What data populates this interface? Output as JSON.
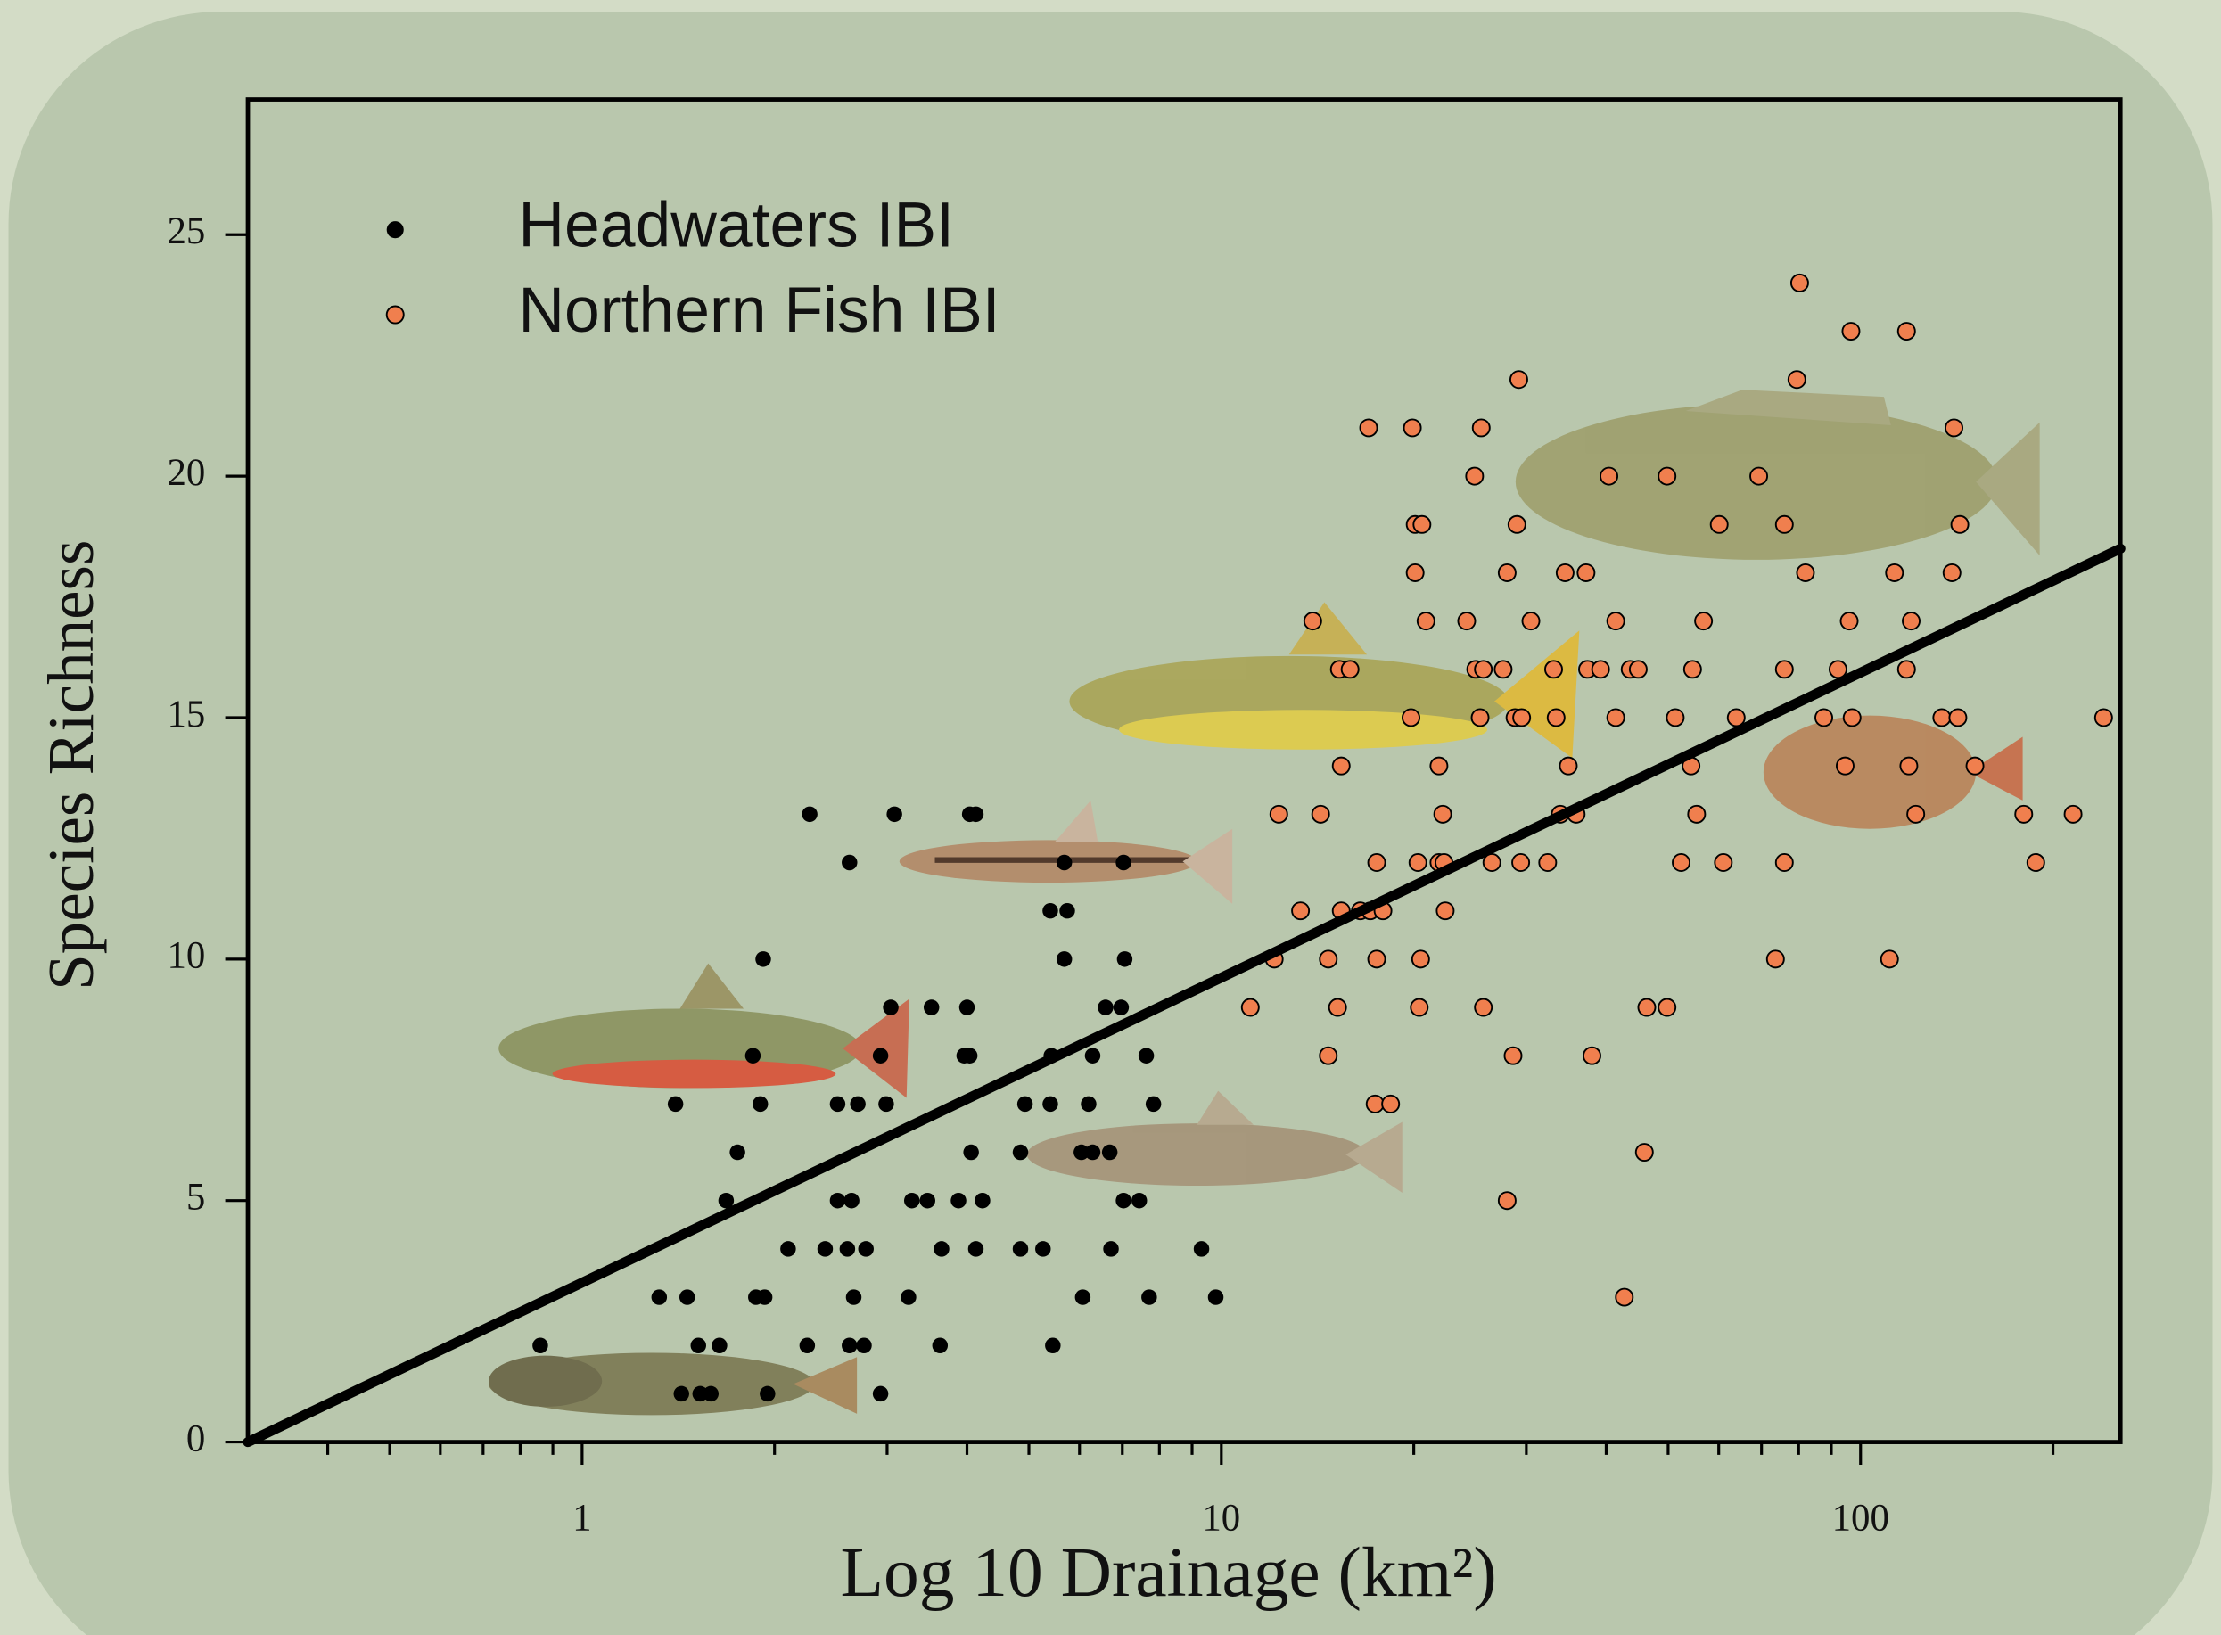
{
  "chart_data": {
    "type": "scatter",
    "x_label": "Log 10 Drainage (km²)",
    "y_label": "Species Richness",
    "xscale": "log",
    "xlim": [
      0.3,
      255
    ],
    "ylim": [
      0,
      27.8
    ],
    "xticks": [
      1,
      10,
      100
    ],
    "xminorticks": [
      0.4,
      0.5,
      0.6,
      0.7,
      0.8,
      0.9,
      2,
      3,
      4,
      5,
      6,
      7,
      8,
      9,
      20,
      30,
      40,
      50,
      60,
      70,
      80,
      90,
      200
    ],
    "yticks": [
      0,
      5,
      10,
      15,
      20,
      25
    ],
    "legend_position": "upper left",
    "series": [
      {
        "name": "Headwaters IBI",
        "color": "#000000",
        "x": [
          2.27,
          3.08,
          4.04,
          4.13,
          2.62,
          5.68,
          7.03,
          5.4,
          5.74,
          1.92,
          5.68,
          7.06,
          3.04,
          3.52,
          4.0,
          6.59,
          6.97,
          1.85,
          2.93,
          3.96,
          4.04,
          5.42,
          6.29,
          7.63,
          1.4,
          1.9,
          2.51,
          2.7,
          2.99,
          4.93,
          5.4,
          6.2,
          7.83,
          1.75,
          4.06,
          4.85,
          6.04,
          6.29,
          6.69,
          1.68,
          2.51,
          2.64,
          3.28,
          3.47,
          3.88,
          4.23,
          7.03,
          7.44,
          2.1,
          2.4,
          2.6,
          2.78,
          3.65,
          4.13,
          4.85,
          5.26,
          6.72,
          9.31,
          1.32,
          1.46,
          1.87,
          1.93,
          2.66,
          3.24,
          6.07,
          7.71,
          9.8,
          0.86,
          1.52,
          1.64,
          2.25,
          2.62,
          2.76,
          3.63,
          5.45,
          1.43,
          1.53,
          1.59,
          1.95,
          2.93
        ],
        "values": [
          13,
          13,
          13,
          13,
          12,
          12,
          12,
          11,
          11,
          10,
          10,
          10,
          9,
          9,
          9,
          9,
          9,
          8,
          8,
          8,
          8,
          8,
          8,
          8,
          7,
          7,
          7,
          7,
          7,
          7,
          7,
          7,
          7,
          6,
          6,
          6,
          6,
          6,
          6,
          5,
          5,
          5,
          5,
          5,
          5,
          5,
          5,
          5,
          4,
          4,
          4,
          4,
          4,
          4,
          4,
          4,
          4,
          4,
          3,
          3,
          3,
          3,
          3,
          3,
          3,
          3,
          3,
          2,
          2,
          2,
          2,
          2,
          2,
          2,
          2,
          1,
          1,
          1,
          1,
          1
        ]
      },
      {
        "name": "Northern Fish IBI",
        "color": "#f07f4e",
        "x": [
          80.3,
          96.6,
          118,
          29.2,
          79.5,
          17.0,
          19.9,
          25.5,
          140,
          24.9,
          40.4,
          49.8,
          69.3,
          20.1,
          20.6,
          29.0,
          60.1,
          76.0,
          143,
          20.1,
          28.0,
          34.5,
          37.2,
          82.0,
          113,
          139,
          13.9,
          20.9,
          24.2,
          30.5,
          41.4,
          56.8,
          96.0,
          120,
          15.3,
          15.9,
          27.6,
          25.0,
          25.7,
          33.1,
          37.4,
          39.2,
          43.6,
          44.9,
          54.6,
          76.0,
          92.2,
          118,
          19.8,
          25.4,
          28.8,
          29.5,
          33.4,
          41.4,
          51.3,
          63.9,
          87.6,
          97.0,
          134,
          142,
          240,
          15.4,
          21.9,
          34.9,
          54.3,
          94.6,
          119,
          151,
          12.3,
          14.3,
          22.2,
          33.9,
          35.9,
          55.4,
          122,
          180,
          215,
          17.5,
          20.3,
          21.9,
          22.3,
          26.5,
          29.4,
          32.4,
          52.4,
          61.0,
          76.0,
          188,
          13.3,
          15.4,
          16.5,
          17.1,
          17.9,
          22.4,
          12.1,
          14.7,
          17.5,
          20.5,
          73.6,
          111,
          11.1,
          15.2,
          20.4,
          25.7,
          46.3,
          49.8,
          14.7,
          28.6,
          38.0,
          17.4,
          18.4,
          45.9,
          28.0,
          42.7
        ],
        "values": [
          24,
          23,
          23,
          22,
          22,
          21,
          21,
          21,
          21,
          20,
          20,
          20,
          20,
          19,
          19,
          19,
          19,
          19,
          19,
          18,
          18,
          18,
          18,
          18,
          18,
          18,
          17,
          17,
          17,
          17,
          17,
          17,
          17,
          17,
          16,
          16,
          16,
          16,
          16,
          16,
          16,
          16,
          16,
          16,
          16,
          16,
          16,
          16,
          15,
          15,
          15,
          15,
          15,
          15,
          15,
          15,
          15,
          15,
          15,
          15,
          15,
          14,
          14,
          14,
          14,
          14,
          14,
          14,
          13,
          13,
          13,
          13,
          13,
          13,
          13,
          13,
          13,
          12,
          12,
          12,
          12,
          12,
          12,
          12,
          12,
          12,
          12,
          12,
          11,
          11,
          11,
          11,
          11,
          11,
          10,
          10,
          10,
          10,
          10,
          10,
          9,
          9,
          9,
          9,
          9,
          9,
          8,
          8,
          8,
          7,
          7,
          6,
          5,
          3
        ]
      }
    ],
    "trend_line": {
      "color": "#000000",
      "x": [
        0.3,
        255
      ],
      "y": [
        0,
        18.5
      ]
    }
  }
}
